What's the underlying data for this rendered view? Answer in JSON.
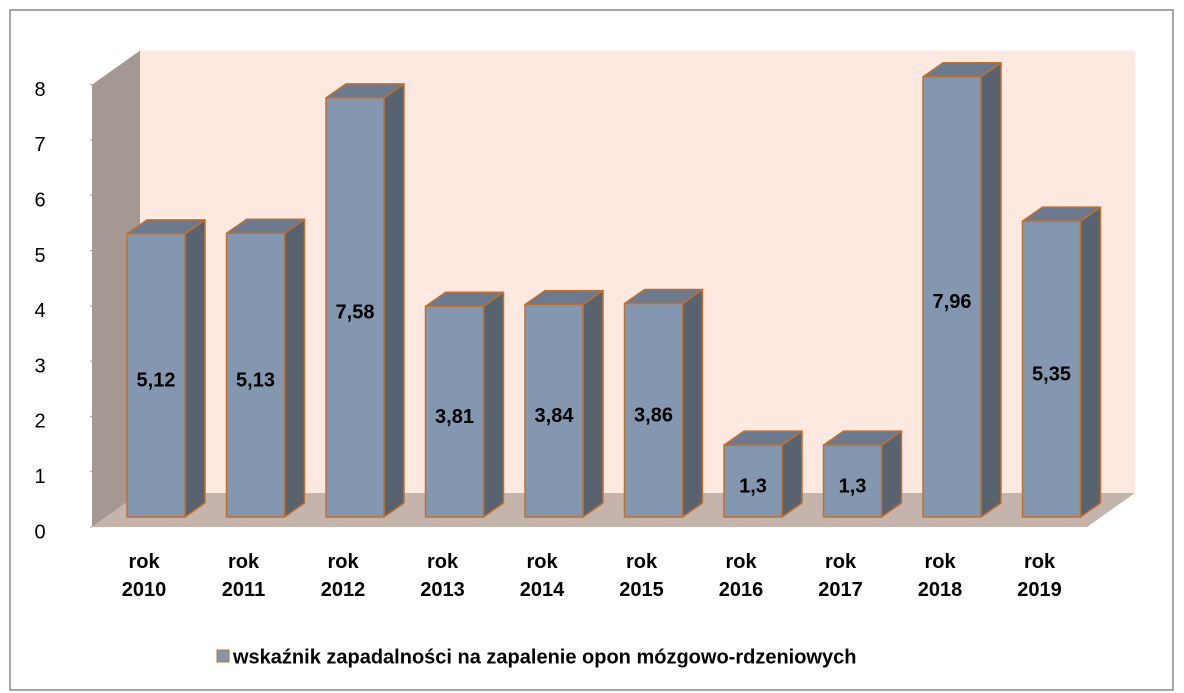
{
  "chart_data": {
    "type": "bar3d",
    "categories": [
      "rok 2010",
      "rok 2011",
      "rok 2012",
      "rok 2013",
      "rok 2014",
      "rok 2015",
      "rok 2016",
      "rok 2017",
      "rok 2018",
      "rok 2019"
    ],
    "series": [
      {
        "name": "wskaźnik zapadalności na zapalenie opon mózgowo-rdzeniowych",
        "color": "#8497b0",
        "values": [
          5.12,
          5.13,
          7.58,
          3.81,
          3.84,
          3.86,
          1.3,
          1.3,
          7.96,
          5.35
        ],
        "value_labels": [
          "5,12",
          "5,13",
          "7,58",
          "3,81",
          "3,84",
          "3,86",
          "1,3",
          "1,3",
          "7,96",
          "5,35"
        ]
      }
    ],
    "ylim": [
      0,
      8
    ],
    "yticks": [
      0,
      1,
      2,
      3,
      4,
      5,
      6,
      7,
      8
    ],
    "legend": "bottom"
  }
}
